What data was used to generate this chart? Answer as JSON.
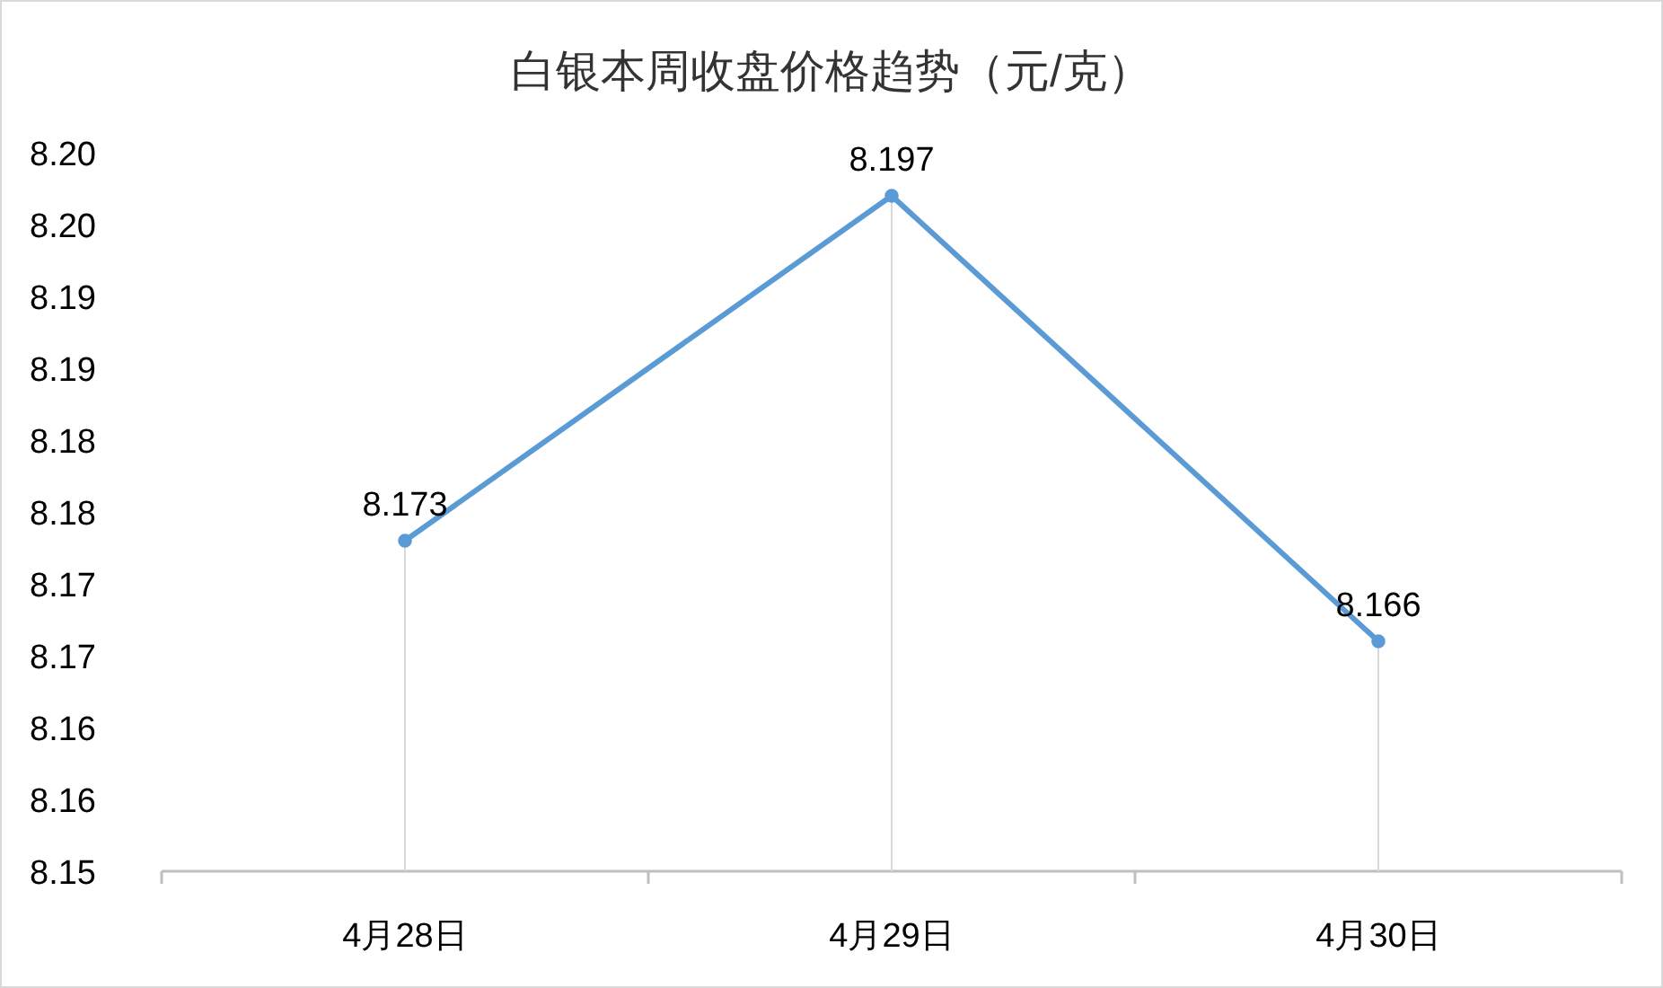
{
  "chart_data": {
    "type": "line",
    "title": "白银本周收盘价格趋势（元/克）",
    "categories": [
      "4月28日",
      "4月29日",
      "4月30日"
    ],
    "series": [
      {
        "color": "#5b9bd5",
        "values": [
          8.173,
          8.197,
          8.166
        ]
      }
    ],
    "ylim": [
      8.15,
      8.2
    ],
    "yticks": [
      8.15,
      {
        "value": 8.155,
        "label": "8.16"
      },
      8.16,
      {
        "value": 8.165,
        "label": "8.17"
      },
      8.17,
      {
        "value": 8.175,
        "label": "8.18"
      },
      8.18,
      {
        "value": 8.185,
        "label": "8.19"
      },
      8.19,
      {
        "value": 8.195,
        "label": "8.20"
      },
      {
        "value": 8.2,
        "label": "8.20"
      }
    ],
    "marker": "circle",
    "line_style": "solid",
    "data_labels": true
  }
}
